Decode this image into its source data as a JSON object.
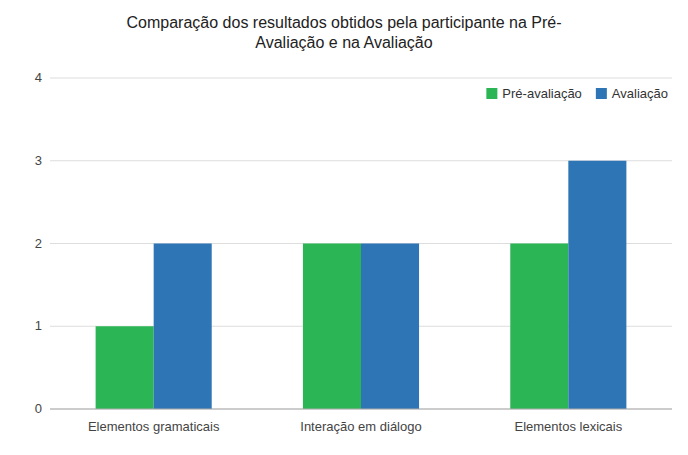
{
  "chart_data": {
    "type": "bar",
    "title": "Comparação dos resultados obtidos pela participante na Pré-\nAvaliação e na Avaliação",
    "categories": [
      "Elementos gramaticais",
      "Interação em diálogo",
      "Elementos lexicais"
    ],
    "series": [
      {
        "name": "Pré-avaliação",
        "color": "#2cb554",
        "values": [
          1,
          2,
          2
        ]
      },
      {
        "name": "Avaliação",
        "color": "#2e75b6",
        "values": [
          2,
          2,
          3
        ]
      }
    ],
    "ylim": [
      0,
      4
    ],
    "yticks": [
      0,
      1,
      2,
      3,
      4
    ],
    "grid": true,
    "legend": "upper right"
  }
}
